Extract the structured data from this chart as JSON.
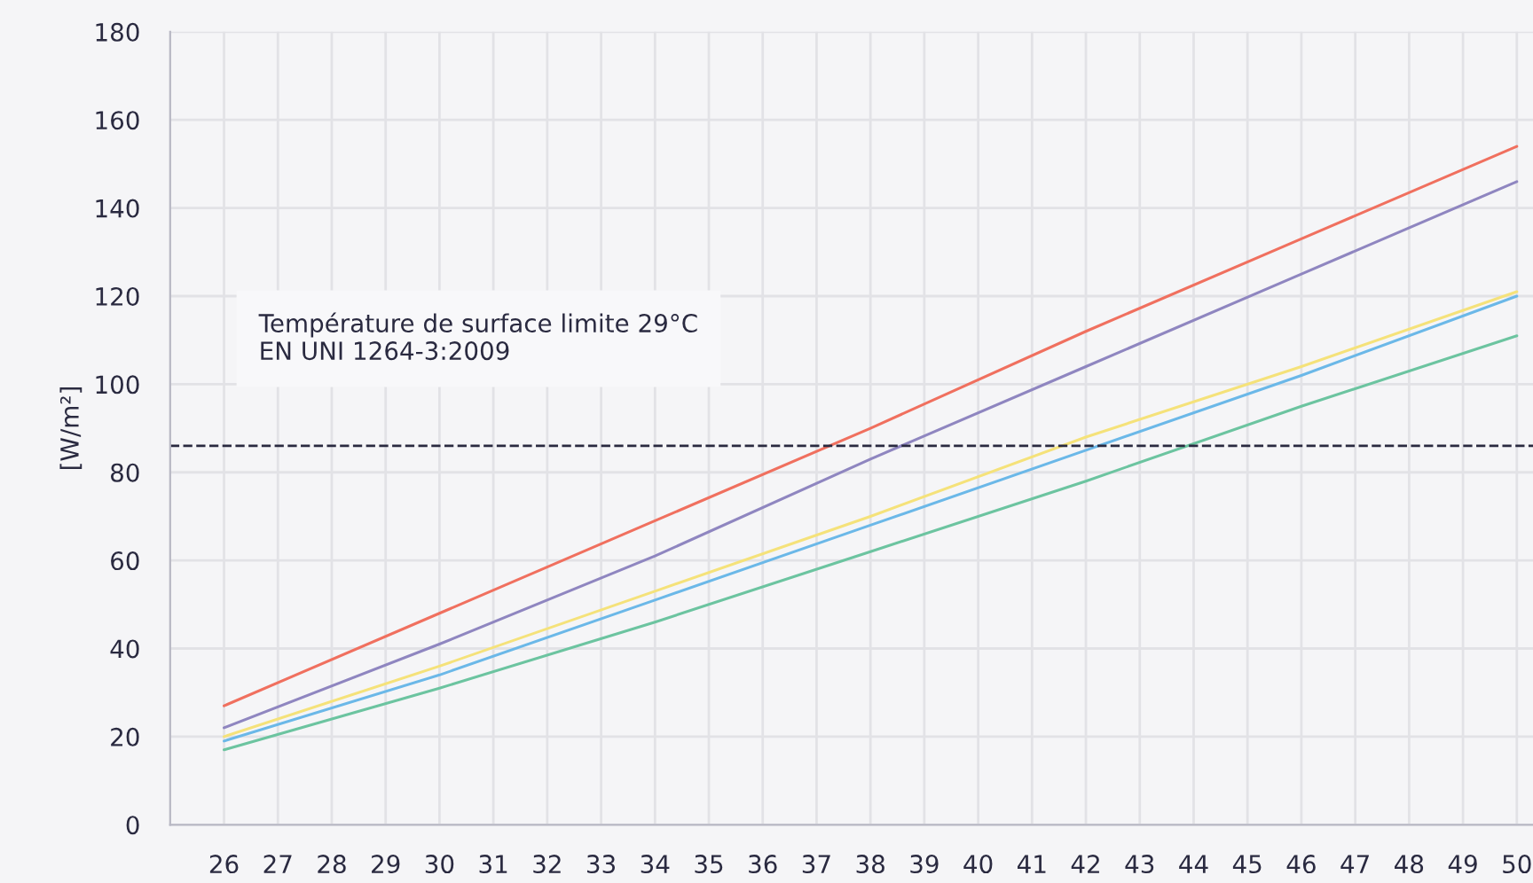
{
  "chart_data": {
    "type": "line",
    "ylabel": "[W/m²]",
    "x": [
      26,
      30,
      34,
      38,
      42,
      46,
      50
    ],
    "series": [
      {
        "color": "#f0705f",
        "values": [
          27,
          48,
          69,
          90,
          112,
          133,
          154
        ]
      },
      {
        "color": "#8f86c0",
        "values": [
          22,
          41,
          61,
          83,
          104,
          125,
          146
        ]
      },
      {
        "color": "#f5e27a",
        "values": [
          20,
          36,
          53,
          70,
          88,
          104,
          121
        ]
      },
      {
        "color": "#6bb8e8",
        "values": [
          19,
          34,
          51,
          68,
          85,
          102,
          120
        ]
      },
      {
        "color": "#6cc4a0",
        "values": [
          17,
          31,
          46,
          62,
          78,
          95,
          111
        ]
      }
    ],
    "xlim": [
      25,
      50.3
    ],
    "xticks": [
      26,
      27,
      28,
      29,
      30,
      31,
      32,
      33,
      34,
      35,
      36,
      37,
      38,
      39,
      40,
      41,
      42,
      43,
      44,
      45,
      46,
      47,
      48,
      49,
      50
    ],
    "ylim": [
      0,
      180
    ],
    "yticks": [
      0,
      20,
      40,
      60,
      80,
      100,
      120,
      140,
      160,
      180
    ],
    "grid": true,
    "marker": "none",
    "line_style": "solid",
    "ref_lines": [
      {
        "axis": "y",
        "value": 86,
        "color": "#2a2a40",
        "line_style": "dashed"
      }
    ],
    "annotations": [
      "Température de surface limite 29°C\nEN UNI 1264-3:2009"
    ]
  }
}
